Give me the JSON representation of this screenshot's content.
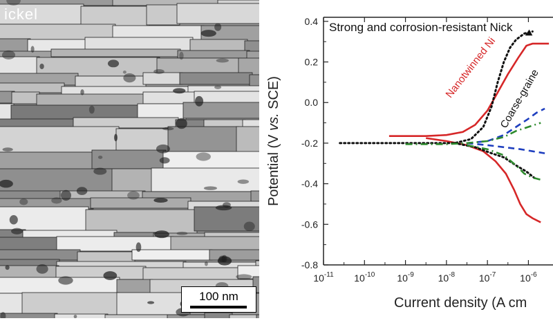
{
  "micrograph": {
    "label": "ickel",
    "scale_bar": "100 nm"
  },
  "chart_data": {
    "type": "line",
    "title": "Strong and corrosion-resistant Nick",
    "xlabel_prefix": "Current density (",
    "xlabel_rest": "A cm",
    "ylabel_prefix": "Potential (V ",
    "ylabel_italic": "vs.",
    "ylabel_suffix": " SCE)",
    "x_log_range": [
      -11,
      -5.4
    ],
    "ylim": [
      -0.8,
      0.42
    ],
    "x_ticks": [
      {
        "exp": -11,
        "label": "10",
        "sup": "-11"
      },
      {
        "exp": -10,
        "label": "10",
        "sup": "-10"
      },
      {
        "exp": -9,
        "label": "10",
        "sup": "-9"
      },
      {
        "exp": -8,
        "label": "10",
        "sup": "-8"
      },
      {
        "exp": -7,
        "label": "10",
        "sup": "-7"
      },
      {
        "exp": -6,
        "label": "10",
        "sup": "-6"
      }
    ],
    "y_ticks": [
      0.4,
      0.2,
      0.0,
      -0.2,
      -0.4,
      -0.6,
      -0.8
    ],
    "y_tick_labels": [
      "0.4",
      "0.2",
      "0.0",
      "-0.2",
      "-0.4",
      "-0.6",
      "-0.8"
    ],
    "series": [
      {
        "name": "Nanotwinned Ni",
        "color": "#d62728",
        "dash": "solid",
        "anodic": [
          [
            -9.4,
            -0.165
          ],
          [
            -8.5,
            -0.165
          ],
          [
            -8.0,
            -0.16
          ],
          [
            -7.6,
            -0.145
          ],
          [
            -7.3,
            -0.11
          ],
          [
            -7.0,
            -0.04
          ],
          [
            -6.75,
            0.05
          ],
          [
            -6.5,
            0.14
          ],
          [
            -6.25,
            0.22
          ],
          [
            -6.05,
            0.28
          ],
          [
            -5.9,
            0.29
          ],
          [
            -5.5,
            0.29
          ]
        ],
        "cathodic": [
          [
            -8.5,
            -0.175
          ],
          [
            -8.0,
            -0.19
          ],
          [
            -7.5,
            -0.21
          ],
          [
            -7.1,
            -0.24
          ],
          [
            -6.8,
            -0.29
          ],
          [
            -6.55,
            -0.35
          ],
          [
            -6.35,
            -0.43
          ],
          [
            -6.2,
            -0.5
          ],
          [
            -6.05,
            -0.55
          ],
          [
            -5.9,
            -0.57
          ],
          [
            -5.7,
            -0.59
          ]
        ]
      },
      {
        "name": "Coarse-graine",
        "color": "#111111",
        "dash": "dot",
        "anodic": [
          [
            -10.6,
            -0.2
          ],
          [
            -9.5,
            -0.2
          ],
          [
            -8.5,
            -0.2
          ],
          [
            -7.8,
            -0.2
          ],
          [
            -7.4,
            -0.18
          ],
          [
            -7.1,
            -0.12
          ],
          [
            -6.9,
            -0.02
          ],
          [
            -6.75,
            0.1
          ],
          [
            -6.6,
            0.2
          ],
          [
            -6.45,
            0.27
          ],
          [
            -6.3,
            0.31
          ],
          [
            -6.1,
            0.34
          ],
          [
            -5.9,
            0.35
          ]
        ],
        "cathodic": [
          [
            -7.8,
            -0.2
          ],
          [
            -7.3,
            -0.22
          ],
          [
            -6.9,
            -0.25
          ],
          [
            -6.6,
            -0.27
          ],
          [
            -6.3,
            -0.31
          ],
          [
            -6.05,
            -0.34
          ],
          [
            -5.8,
            -0.38
          ]
        ]
      },
      {
        "name": "",
        "color": "#1f3fbf",
        "dash": "dash",
        "anodic": [
          [
            -7.5,
            -0.2
          ],
          [
            -7.0,
            -0.19
          ],
          [
            -6.6,
            -0.16
          ],
          [
            -6.3,
            -0.12
          ],
          [
            -6.0,
            -0.08
          ],
          [
            -5.8,
            -0.05
          ],
          [
            -5.6,
            -0.03
          ]
        ],
        "cathodic": [
          [
            -7.5,
            -0.2
          ],
          [
            -7.0,
            -0.21
          ],
          [
            -6.6,
            -0.22
          ],
          [
            -6.2,
            -0.23
          ],
          [
            -5.9,
            -0.24
          ],
          [
            -5.6,
            -0.25
          ]
        ]
      },
      {
        "name": "",
        "color": "#2e8b2e",
        "dash": "dashdot",
        "anodic": [
          [
            -9.0,
            -0.205
          ],
          [
            -8.0,
            -0.205
          ],
          [
            -7.5,
            -0.2
          ],
          [
            -7.0,
            -0.19
          ],
          [
            -6.6,
            -0.17
          ],
          [
            -6.3,
            -0.14
          ],
          [
            -6.0,
            -0.12
          ],
          [
            -5.7,
            -0.1
          ]
        ],
        "cathodic": [
          [
            -7.5,
            -0.21
          ],
          [
            -7.0,
            -0.23
          ],
          [
            -6.6,
            -0.26
          ],
          [
            -6.3,
            -0.31
          ],
          [
            -6.1,
            -0.35
          ],
          [
            -5.9,
            -0.37
          ],
          [
            -5.7,
            -0.38
          ]
        ]
      }
    ],
    "grid": false
  }
}
